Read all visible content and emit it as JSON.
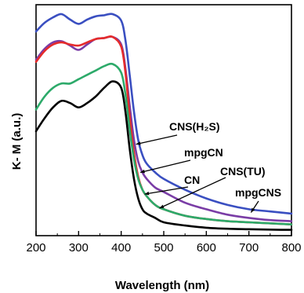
{
  "chart_data": {
    "type": "line",
    "title": "",
    "xlabel": "Wavelength (nm)",
    "ylabel": "K- M  (a.u.)",
    "xlim": [
      200,
      800
    ],
    "ylim": [
      0,
      1
    ],
    "y_ticks_shown": false,
    "x_ticks": [
      200,
      300,
      400,
      500,
      600,
      700,
      800
    ],
    "series": [
      {
        "name": "CNS(H2S)",
        "color": "#3a4fc1",
        "x": [
          200,
          220,
          240,
          260,
          280,
          300,
          320,
          340,
          360,
          380,
          400,
          410,
          420,
          430,
          440,
          450,
          460,
          480,
          500,
          550,
          600,
          650,
          700,
          750,
          800
        ],
        "y": [
          0.92,
          0.96,
          0.985,
          1.0,
          0.975,
          0.955,
          0.975,
          0.99,
          0.995,
          1.0,
          0.97,
          0.88,
          0.72,
          0.55,
          0.42,
          0.35,
          0.31,
          0.27,
          0.24,
          0.19,
          0.15,
          0.12,
          0.1,
          0.09,
          0.08
        ]
      },
      {
        "name": "mpgCN",
        "color": "#7a3da6",
        "x": [
          200,
          220,
          240,
          260,
          280,
          300,
          320,
          340,
          360,
          380,
          400,
          410,
          420,
          430,
          440,
          450,
          460,
          480,
          500,
          550,
          600,
          650,
          700,
          750,
          800
        ],
        "y": [
          0.79,
          0.84,
          0.87,
          0.875,
          0.855,
          0.835,
          0.86,
          0.885,
          0.89,
          0.895,
          0.86,
          0.75,
          0.58,
          0.42,
          0.32,
          0.27,
          0.24,
          0.2,
          0.18,
          0.13,
          0.1,
          0.075,
          0.06,
          0.05,
          0.045
        ]
      },
      {
        "name": "CN",
        "color": "#e52b2b",
        "x": [
          200,
          220,
          240,
          260,
          280,
          300,
          320,
          340,
          360,
          380,
          400,
          410,
          420,
          430,
          440,
          450,
          460,
          480,
          500,
          550,
          600,
          650,
          700,
          750,
          800
        ],
        "y": [
          0.78,
          0.83,
          0.86,
          0.87,
          0.86,
          0.855,
          0.87,
          0.885,
          0.89,
          0.895,
          0.85,
          0.73,
          0.53,
          0.36,
          0.25,
          0.19,
          0.16,
          0.12,
          0.1,
          0.07,
          0.055,
          0.045,
          0.04,
          0.035,
          0.03
        ]
      },
      {
        "name": "CNS(TU)",
        "color": "#2daa6a",
        "x": [
          200,
          220,
          240,
          260,
          280,
          300,
          320,
          340,
          360,
          380,
          400,
          410,
          420,
          430,
          440,
          450,
          460,
          480,
          500,
          550,
          600,
          650,
          700,
          750,
          800
        ],
        "y": [
          0.56,
          0.62,
          0.66,
          0.68,
          0.68,
          0.7,
          0.72,
          0.74,
          0.76,
          0.77,
          0.73,
          0.63,
          0.47,
          0.33,
          0.24,
          0.19,
          0.16,
          0.12,
          0.1,
          0.07,
          0.055,
          0.045,
          0.04,
          0.035,
          0.03
        ]
      },
      {
        "name": "mpgCNS",
        "color": "#000000",
        "x": [
          200,
          220,
          240,
          260,
          280,
          300,
          320,
          340,
          360,
          380,
          400,
          410,
          420,
          430,
          440,
          450,
          460,
          480,
          500,
          550,
          600,
          650,
          700,
          750,
          800
        ],
        "y": [
          0.46,
          0.52,
          0.57,
          0.6,
          0.59,
          0.57,
          0.59,
          0.62,
          0.66,
          0.69,
          0.66,
          0.55,
          0.38,
          0.24,
          0.15,
          0.1,
          0.08,
          0.06,
          0.04,
          0.025,
          0.015,
          0.01,
          0.008,
          0.006,
          0.005
        ]
      }
    ],
    "annotations": [
      {
        "text": "CNS(H₂S)",
        "target_x": 435,
        "target_y": 0.4
      },
      {
        "text": "mpgCN",
        "target_x": 445,
        "target_y": 0.27
      },
      {
        "text": "CN",
        "target_x": 455,
        "target_y": 0.17
      },
      {
        "text": "CNS(TU)",
        "target_x": 490,
        "target_y": 0.105
      },
      {
        "text": "mpgCNS",
        "target_x": 705,
        "target_y": 0.085
      }
    ],
    "grid": false,
    "legend": "none (inline arrow annotations)"
  }
}
